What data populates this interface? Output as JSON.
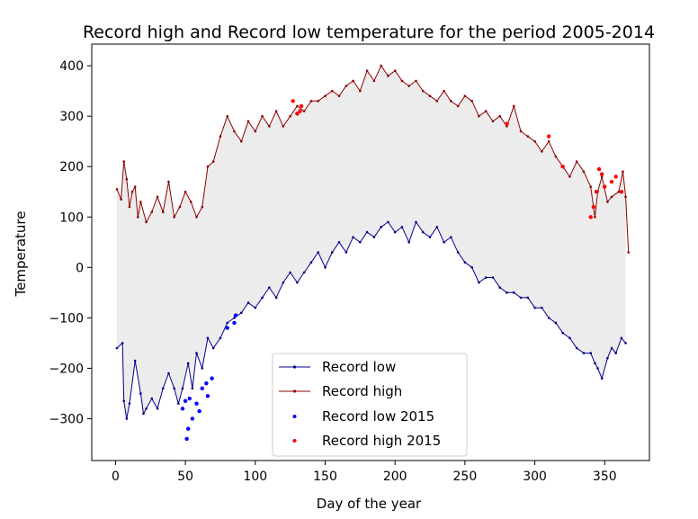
{
  "chart_data": {
    "type": "line",
    "title": "Record high and Record low temperature for the period 2005-2014",
    "xlabel": "Day of the year",
    "ylabel": "Temperature",
    "xlim": [
      -17,
      382
    ],
    "ylim": [
      -383,
      443
    ],
    "xticks": [
      0,
      50,
      100,
      150,
      200,
      250,
      300,
      350
    ],
    "yticks": [
      -300,
      -200,
      -100,
      0,
      100,
      200,
      300,
      400
    ],
    "fill_between": true,
    "fill_color": "#ececec",
    "grid": false,
    "legend_position": "lower center",
    "series": [
      {
        "name": "Record low",
        "kind": "line",
        "color": "#00008b",
        "x": [
          1,
          5,
          6,
          8,
          10,
          14,
          18,
          20,
          22,
          26,
          30,
          34,
          38,
          42,
          45,
          48,
          52,
          55,
          58,
          62,
          66,
          70,
          75,
          80,
          85,
          90,
          95,
          100,
          105,
          110,
          115,
          120,
          125,
          130,
          135,
          140,
          145,
          150,
          155,
          160,
          165,
          170,
          175,
          180,
          185,
          190,
          195,
          200,
          205,
          210,
          215,
          220,
          225,
          230,
          235,
          240,
          245,
          250,
          255,
          260,
          265,
          270,
          275,
          280,
          285,
          290,
          295,
          300,
          305,
          310,
          315,
          320,
          325,
          330,
          335,
          340,
          343,
          345,
          348,
          352,
          355,
          358,
          362,
          365
        ],
        "y": [
          -160,
          -150,
          -265,
          -300,
          -270,
          -185,
          -250,
          -290,
          -280,
          -260,
          -280,
          -240,
          -210,
          -240,
          -270,
          -240,
          -190,
          -240,
          -170,
          -200,
          -140,
          -160,
          -140,
          -110,
          -100,
          -90,
          -70,
          -80,
          -60,
          -40,
          -60,
          -30,
          -10,
          -30,
          -10,
          10,
          30,
          0,
          30,
          50,
          30,
          60,
          50,
          70,
          60,
          80,
          90,
          70,
          80,
          50,
          90,
          70,
          60,
          80,
          50,
          60,
          30,
          10,
          0,
          -30,
          -20,
          -20,
          -40,
          -50,
          -50,
          -60,
          -60,
          -80,
          -80,
          -100,
          -110,
          -130,
          -140,
          -160,
          -170,
          -170,
          -190,
          -200,
          -220,
          -180,
          -160,
          -170,
          -140,
          -150
        ]
      },
      {
        "name": "Record high",
        "kind": "line",
        "color": "#8b0000",
        "x": [
          1,
          4,
          6,
          8,
          10,
          12,
          14,
          16,
          18,
          22,
          26,
          30,
          34,
          38,
          42,
          46,
          50,
          54,
          58,
          62,
          66,
          70,
          75,
          80,
          85,
          90,
          95,
          100,
          105,
          110,
          115,
          120,
          125,
          130,
          135,
          140,
          145,
          150,
          155,
          160,
          165,
          170,
          175,
          180,
          185,
          190,
          195,
          200,
          205,
          210,
          215,
          220,
          225,
          230,
          235,
          240,
          245,
          250,
          255,
          260,
          265,
          270,
          275,
          280,
          285,
          290,
          295,
          300,
          305,
          310,
          315,
          320,
          325,
          330,
          335,
          340,
          343,
          345,
          348,
          352,
          355,
          360,
          363,
          365,
          367
        ],
        "y": [
          155,
          135,
          210,
          175,
          120,
          150,
          160,
          100,
          130,
          90,
          110,
          140,
          110,
          170,
          100,
          120,
          150,
          130,
          100,
          120,
          200,
          210,
          260,
          300,
          270,
          250,
          290,
          270,
          300,
          280,
          310,
          280,
          300,
          320,
          310,
          330,
          330,
          340,
          350,
          340,
          360,
          370,
          350,
          390,
          370,
          400,
          380,
          390,
          370,
          360,
          370,
          350,
          340,
          330,
          350,
          330,
          320,
          340,
          330,
          300,
          310,
          290,
          300,
          280,
          320,
          270,
          260,
          250,
          230,
          250,
          220,
          200,
          180,
          210,
          190,
          160,
          100,
          150,
          180,
          130,
          140,
          150,
          190,
          140,
          30
        ]
      },
      {
        "name": "Record low 2015",
        "kind": "scatter",
        "color": "#0000ff",
        "x": [
          48,
          50,
          51,
          52,
          53,
          55,
          58,
          60,
          62,
          65,
          66,
          69,
          80,
          85,
          86
        ],
        "y": [
          -280,
          -265,
          -340,
          -320,
          -260,
          -300,
          -270,
          -285,
          -240,
          -230,
          -255,
          -220,
          -120,
          -110,
          -95
        ]
      },
      {
        "name": "Record high 2015",
        "kind": "scatter",
        "color": "#ff0000",
        "x": [
          127,
          130,
          132,
          133,
          280,
          310,
          320,
          340,
          342,
          344,
          346,
          348,
          350,
          355,
          358,
          362
        ],
        "y": [
          330,
          305,
          310,
          320,
          285,
          260,
          200,
          100,
          120,
          150,
          195,
          185,
          160,
          170,
          180,
          150
        ]
      }
    ]
  }
}
